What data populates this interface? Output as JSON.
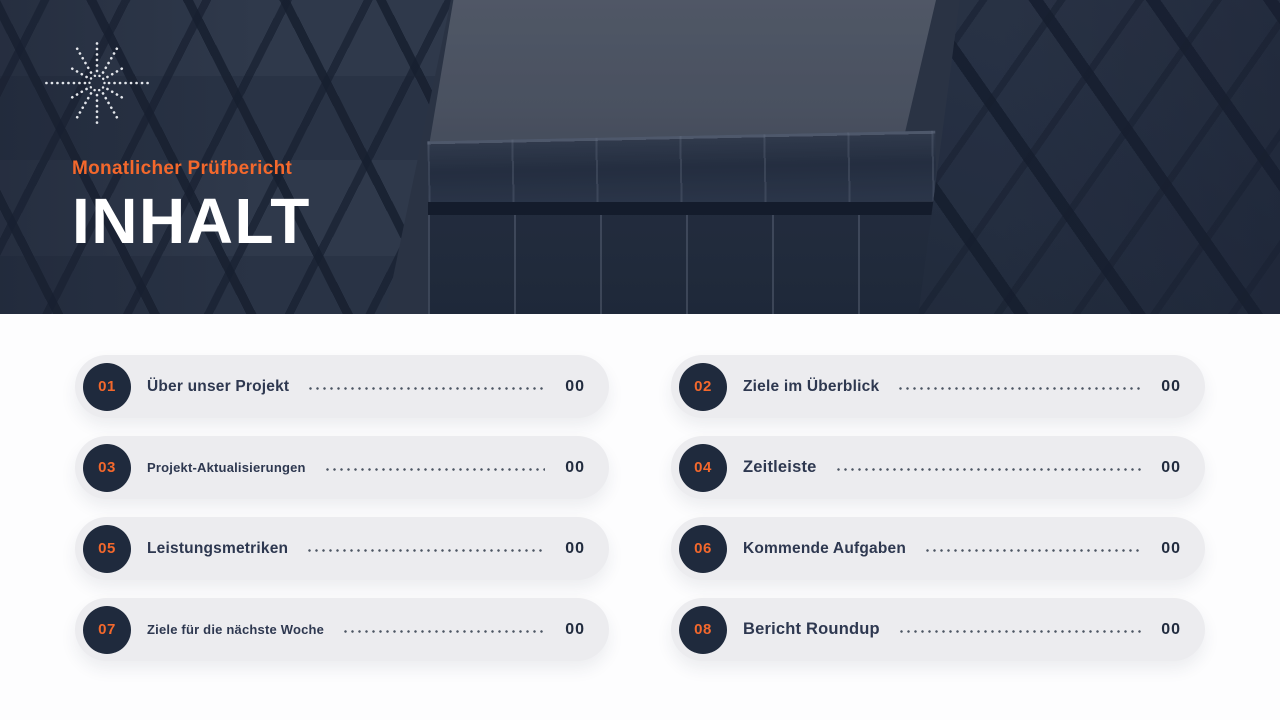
{
  "header": {
    "eyebrow": "Monatlicher Prüfbericht",
    "title": "INHALT",
    "starburst_icon": "dotted-starburst"
  },
  "colors": {
    "accent_orange": "#F4682C",
    "navy_badge": "#1F2A3D",
    "title_navy": "#2E3850",
    "pill_background": "#ECECEF",
    "hero_background": "#2B3445",
    "sky": "#555C6A",
    "leader_dots": "#4D5664"
  },
  "toc": {
    "items": [
      {
        "number": "01",
        "title": "Über unser Projekt",
        "page": "00"
      },
      {
        "number": "02",
        "title": "Ziele im Überblick",
        "page": "00"
      },
      {
        "number": "03",
        "title": "Projekt-Aktualisierungen",
        "page": "00"
      },
      {
        "number": "04",
        "title": "Zeitleiste",
        "page": "00"
      },
      {
        "number": "05",
        "title": "Leistungsmetriken",
        "page": "00"
      },
      {
        "number": "06",
        "title": "Kommende Aufgaben",
        "page": "00"
      },
      {
        "number": "07",
        "title": "Ziele für die nächste Woche",
        "page": "00"
      },
      {
        "number": "08",
        "title": "Bericht Roundup",
        "page": "00"
      }
    ]
  }
}
